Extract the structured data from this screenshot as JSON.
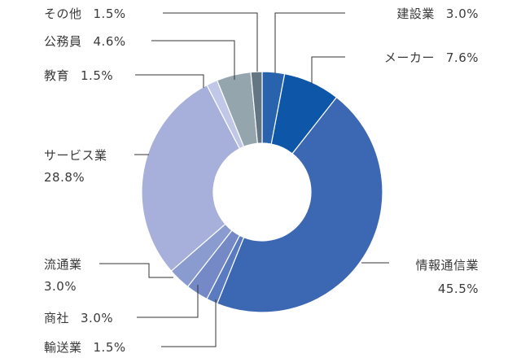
{
  "chart_data": {
    "type": "pie",
    "donut": true,
    "unit": "%",
    "slices": [
      {
        "name": "建設業",
        "value": 3.0,
        "value_label": "3.0%",
        "color": "#2a63ad"
      },
      {
        "name": "メーカー",
        "value": 7.6,
        "value_label": "7.6%",
        "color": "#0d56a8"
      },
      {
        "name": "情報通信業",
        "value": 45.5,
        "value_label": "45.5%",
        "color": "#3b67b3"
      },
      {
        "name": "輸送業",
        "value": 1.5,
        "value_label": "1.5%",
        "color": "#5a7bbf"
      },
      {
        "name": "商社",
        "value": 3.0,
        "value_label": "3.0%",
        "color": "#7589c6"
      },
      {
        "name": "流通業",
        "value": 3.0,
        "value_label": "3.0%",
        "color": "#8a9bd0"
      },
      {
        "name": "サービス業",
        "value": 28.8,
        "value_label": "28.8%",
        "color": "#a6b0da"
      },
      {
        "name": "教育",
        "value": 1.5,
        "value_label": "1.5%",
        "color": "#c1c7e6"
      },
      {
        "name": "公務員",
        "value": 4.6,
        "value_label": "4.6%",
        "color": "#95a5ad"
      },
      {
        "name": "その他",
        "value": 1.5,
        "value_label": "1.5%",
        "color": "#647683"
      }
    ]
  }
}
